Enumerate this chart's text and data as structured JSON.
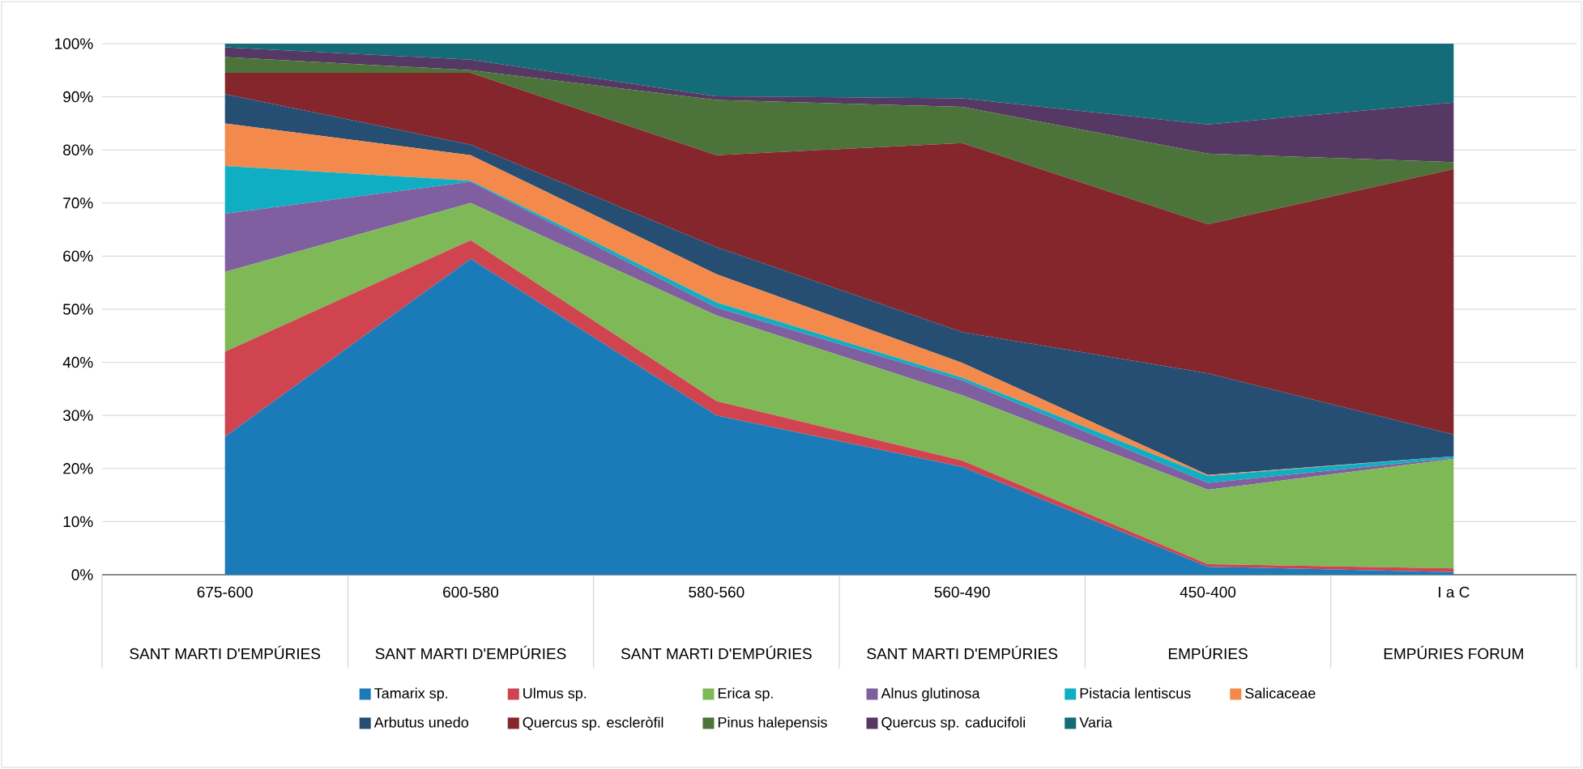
{
  "chart_data": {
    "type": "area",
    "stacked": true,
    "categories": [
      "675-600",
      "600-580",
      "580-560",
      "560-490",
      "450-400",
      "I a C"
    ],
    "annotations": [
      "SANT MARTI D'EMPÚRIES",
      "SANT MARTI D'EMPÚRIES",
      "SANT MARTI D'EMPÚRIES",
      "SANT MARTI D'EMPÚRIES",
      "EMPÚRIES",
      "EMPÚRIES FORUM"
    ],
    "series": [
      {
        "name": "Tamarix sp.",
        "color": "#1b7bb8",
        "values": [
          26,
          59.5,
          30,
          20.3,
          1.5,
          0.5
        ]
      },
      {
        "name": "Ulmus sp.",
        "color": "#d0444f",
        "values": [
          16,
          3.5,
          2.7,
          1.2,
          0.5,
          0.7
        ]
      },
      {
        "name": "Erica sp.",
        "color": "#7eb857",
        "values": [
          15,
          7,
          16.1,
          12.3,
          14,
          20.6
        ]
      },
      {
        "name": "Alnus glutinosa",
        "color": "#7f5fa0",
        "values": [
          11,
          4,
          1.5,
          2.8,
          1.3,
          0.2
        ]
      },
      {
        "name": "Pistacia lentiscus",
        "color": "#10aec2",
        "values": [
          9,
          0.2,
          1,
          0.5,
          1.3,
          0.3
        ]
      },
      {
        "name": "Salicaceae",
        "color": "#f3894a",
        "values": [
          8,
          4.8,
          5.3,
          2.8,
          0.2,
          0
        ]
      },
      {
        "name": "Arbutus unedo",
        "color": "#264e73",
        "values": [
          5.5,
          2,
          5.1,
          5.8,
          19.1,
          4.1
        ]
      },
      {
        "name": "Quercus sp. escleròfil",
        "color": "#85262d",
        "values": [
          4,
          13.5,
          17.3,
          35.6,
          28.1,
          50
        ]
      },
      {
        "name": "Pinus halepensis",
        "color": "#4c7339",
        "values": [
          3,
          0.5,
          10.4,
          6.8,
          13.3,
          1.3
        ]
      },
      {
        "name": "Quercus sp. caducifoli",
        "color": "#553863",
        "values": [
          1.8,
          2,
          0.7,
          1.6,
          5.5,
          11.2
        ]
      },
      {
        "name": "Varia",
        "color": "#136c78",
        "values": [
          0.7,
          3,
          9.9,
          10.3,
          15.2,
          11.1
        ]
      }
    ],
    "ylim": [
      0,
      100
    ],
    "yticks": [
      {
        "value": 0,
        "label": "0%"
      },
      {
        "value": 10,
        "label": "10%"
      },
      {
        "value": 20,
        "label": "20%"
      },
      {
        "value": 30,
        "label": "30%"
      },
      {
        "value": 40,
        "label": "40%"
      },
      {
        "value": 50,
        "label": "50%"
      },
      {
        "value": 60,
        "label": "60%"
      },
      {
        "value": 70,
        "label": "70%"
      },
      {
        "value": 80,
        "label": "80%"
      },
      {
        "value": 90,
        "label": "90%"
      },
      {
        "value": 100,
        "label": "100%"
      }
    ],
    "grid": "y",
    "legend": "bottom"
  }
}
